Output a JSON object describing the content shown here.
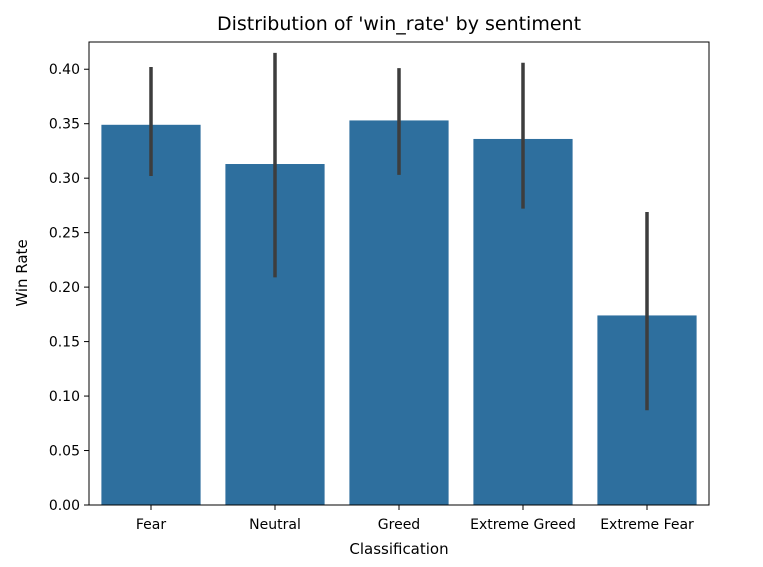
{
  "chart_data": {
    "type": "bar",
    "title": "Distribution of 'win_rate' by sentiment",
    "xlabel": "Classification",
    "ylabel": "Win Rate",
    "categories": [
      "Fear",
      "Neutral",
      "Greed",
      "Extreme Greed",
      "Extreme Fear"
    ],
    "values": [
      0.349,
      0.313,
      0.353,
      0.336,
      0.174
    ],
    "error_bars": [
      [
        0.302,
        0.402
      ],
      [
        0.209,
        0.415
      ],
      [
        0.303,
        0.401
      ],
      [
        0.272,
        0.406
      ],
      [
        0.087,
        0.269
      ]
    ],
    "ylim": [
      0,
      0.425
    ],
    "yticks": [
      "0.00",
      "0.05",
      "0.10",
      "0.15",
      "0.20",
      "0.25",
      "0.30",
      "0.35",
      "0.40"
    ],
    "grid": false,
    "colors": {
      "bar": "#2e6f9e",
      "error_bar": "#3d3d3d",
      "axis": "#000000"
    }
  }
}
